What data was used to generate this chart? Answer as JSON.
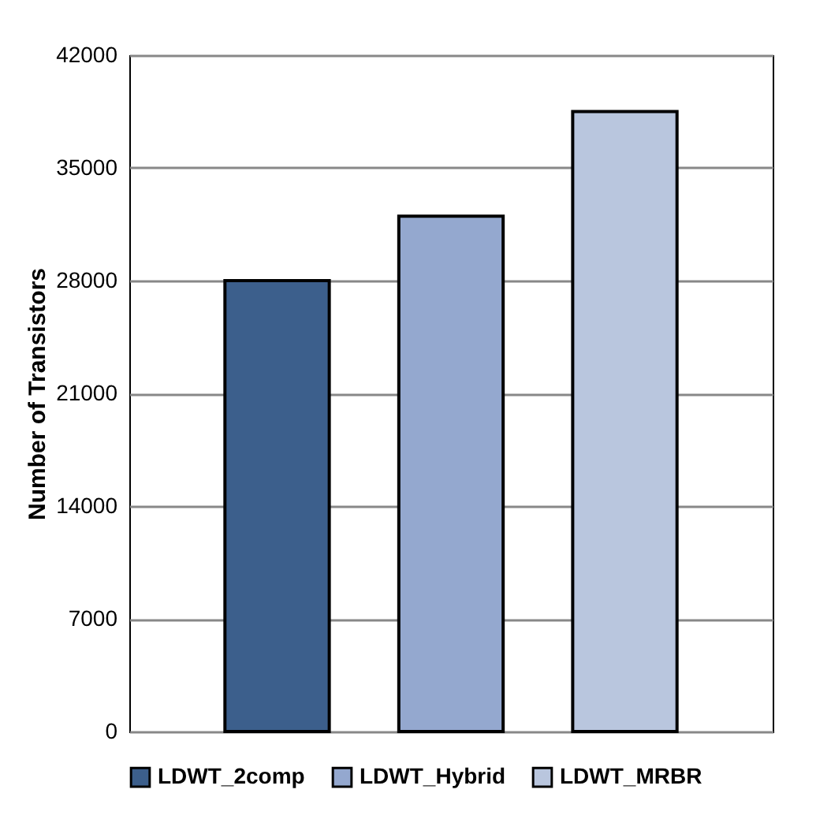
{
  "chart_data": {
    "type": "bar",
    "ylabel": "Number of Transistors",
    "categories": [
      null
    ],
    "series": [
      {
        "name": "LDWT_2comp",
        "color": "#3c5f8c",
        "values": [
          28000
        ]
      },
      {
        "name": "LDWT_Hybrid",
        "color": "#94a8cf",
        "values": [
          32000
        ]
      },
      {
        "name": "LDWT_MRBR",
        "color": "#b9c6de",
        "values": [
          38500
        ]
      }
    ],
    "ylim": [
      0,
      42000
    ],
    "yticks": [
      0,
      7000,
      14000,
      21000,
      28000,
      35000,
      42000
    ],
    "grid": "y",
    "legend": "bottom"
  }
}
